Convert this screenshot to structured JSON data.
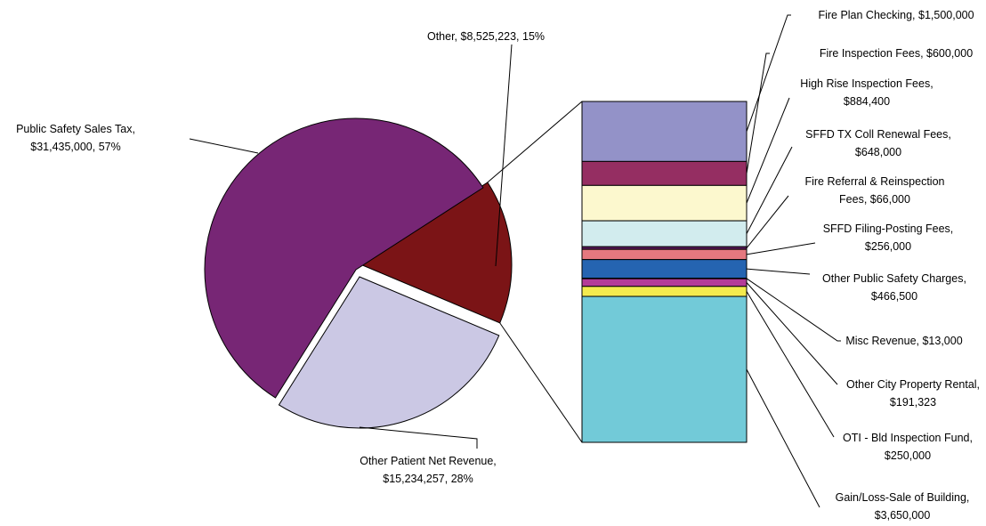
{
  "chart_data": [
    {
      "type": "pie",
      "slices": [
        {
          "label": "Other",
          "value_label": "$8,525,223",
          "pct_label": "15%",
          "value": 8525223,
          "color": "#7b1416",
          "exploded": true
        },
        {
          "label": "Other Patient Net Revenue",
          "value_label": "$15,234,257",
          "pct_label": "28%",
          "value": 15234257,
          "color": "#cbc8e4",
          "exploded": true
        },
        {
          "label": "Public Safety Sales Tax",
          "value_label": "$31,435,000",
          "pct_label": "57%",
          "value": 31435000,
          "color": "#772675",
          "exploded": false
        }
      ]
    },
    {
      "type": "bar",
      "stacked": true,
      "note": "breakdown of the Other slice",
      "segments": [
        {
          "label_lines": [
            "Fire Plan Checking,  $1,500,000"
          ],
          "label": "Fire Plan Checking",
          "value_label": "$1,500,000",
          "value": 1500000,
          "color": "#9392c8"
        },
        {
          "label_lines": [
            "Fire Inspection Fees,  $600,000"
          ],
          "label": "Fire Inspection Fees",
          "value_label": "$600,000",
          "value": 600000,
          "color": "#952e62"
        },
        {
          "label_lines": [
            "High Rise Inspection Fees,",
            "$884,400"
          ],
          "label": "High Rise Inspection Fees",
          "value_label": "$884,400",
          "value": 884400,
          "color": "#fcf8ce"
        },
        {
          "label_lines": [
            "SFFD TX Coll Renewal Fees,",
            "$648,000"
          ],
          "label": "SFFD TX Coll Renewal Fees",
          "value_label": "$648,000",
          "value": 648000,
          "color": "#d2ecee"
        },
        {
          "label_lines": [
            "Fire Referral & Reinspection",
            "Fees,  $66,000"
          ],
          "label": "Fire Referral & Reinspection Fees",
          "value_label": "$66,000",
          "value": 66000,
          "color": "#5f1a60"
        },
        {
          "label_lines": [
            "SFFD Filing-Posting Fees,",
            "$256,000"
          ],
          "label": "SFFD Filing-Posting Fees",
          "value_label": "$256,000",
          "value": 256000,
          "color": "#e5787f"
        },
        {
          "label_lines": [
            "Other Public Safety Charges,",
            "$466,500"
          ],
          "label": "Other Public Safety Charges",
          "value_label": "$466,500",
          "value": 466500,
          "color": "#2564b1"
        },
        {
          "label_lines": [
            "Misc Revenue,  $13,000"
          ],
          "label": "Misc Revenue",
          "value_label": "$13,000",
          "value": 13000,
          "color": "#c6c9e6"
        },
        {
          "label_lines": [
            "Other City Property Rental,",
            "$191,323"
          ],
          "label": "Other City Property Rental",
          "value_label": "$191,323",
          "value": 191323,
          "color": "#b43b98"
        },
        {
          "label_lines": [
            "OTI - Bld Inspection Fund,",
            "$250,000"
          ],
          "label": "OTI - Bld Inspection Fund",
          "value_label": "$250,000",
          "value": 250000,
          "color": "#f3eb4e"
        },
        {
          "label_lines": [
            "Gain/Loss-Sale of Building,",
            "$3,650,000"
          ],
          "label": "Gain/Loss-Sale of Building",
          "value_label": "$3,650,000",
          "value": 3650000,
          "color": "#72cad8"
        }
      ]
    }
  ]
}
